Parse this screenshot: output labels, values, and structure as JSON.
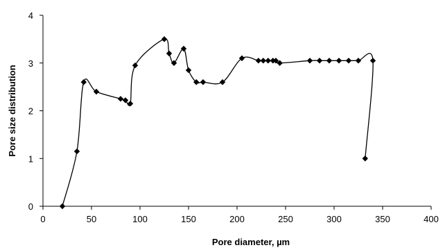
{
  "chart_data": {
    "type": "line",
    "title": "",
    "xlabel": "Pore diameter, µm",
    "ylabel": "Pore size distribution",
    "xlim": [
      0,
      400
    ],
    "ylim": [
      0,
      4
    ],
    "x_ticks": [
      0,
      50,
      100,
      150,
      200,
      250,
      300,
      350,
      400
    ],
    "y_ticks": [
      0,
      1,
      2,
      3,
      4
    ],
    "grid": false,
    "legend": "none",
    "smooth": true,
    "line_color": "#000000",
    "marker": "diamond",
    "series": [
      {
        "x": [
          20,
          35,
          42,
          55,
          80,
          85,
          90,
          95,
          125,
          130,
          135,
          145,
          150,
          158,
          165,
          185,
          205,
          222,
          227,
          232,
          237,
          240,
          244,
          275,
          285,
          295,
          305,
          315,
          325,
          340,
          332
        ],
        "y": [
          0,
          1.15,
          2.6,
          2.4,
          2.25,
          2.22,
          2.15,
          2.95,
          3.5,
          3.2,
          3.0,
          3.3,
          2.85,
          2.6,
          2.6,
          2.6,
          3.1,
          3.05,
          3.05,
          3.05,
          3.05,
          3.05,
          3.0,
          3.05,
          3.05,
          3.05,
          3.05,
          3.05,
          3.05,
          3.05,
          1.0
        ]
      }
    ]
  }
}
